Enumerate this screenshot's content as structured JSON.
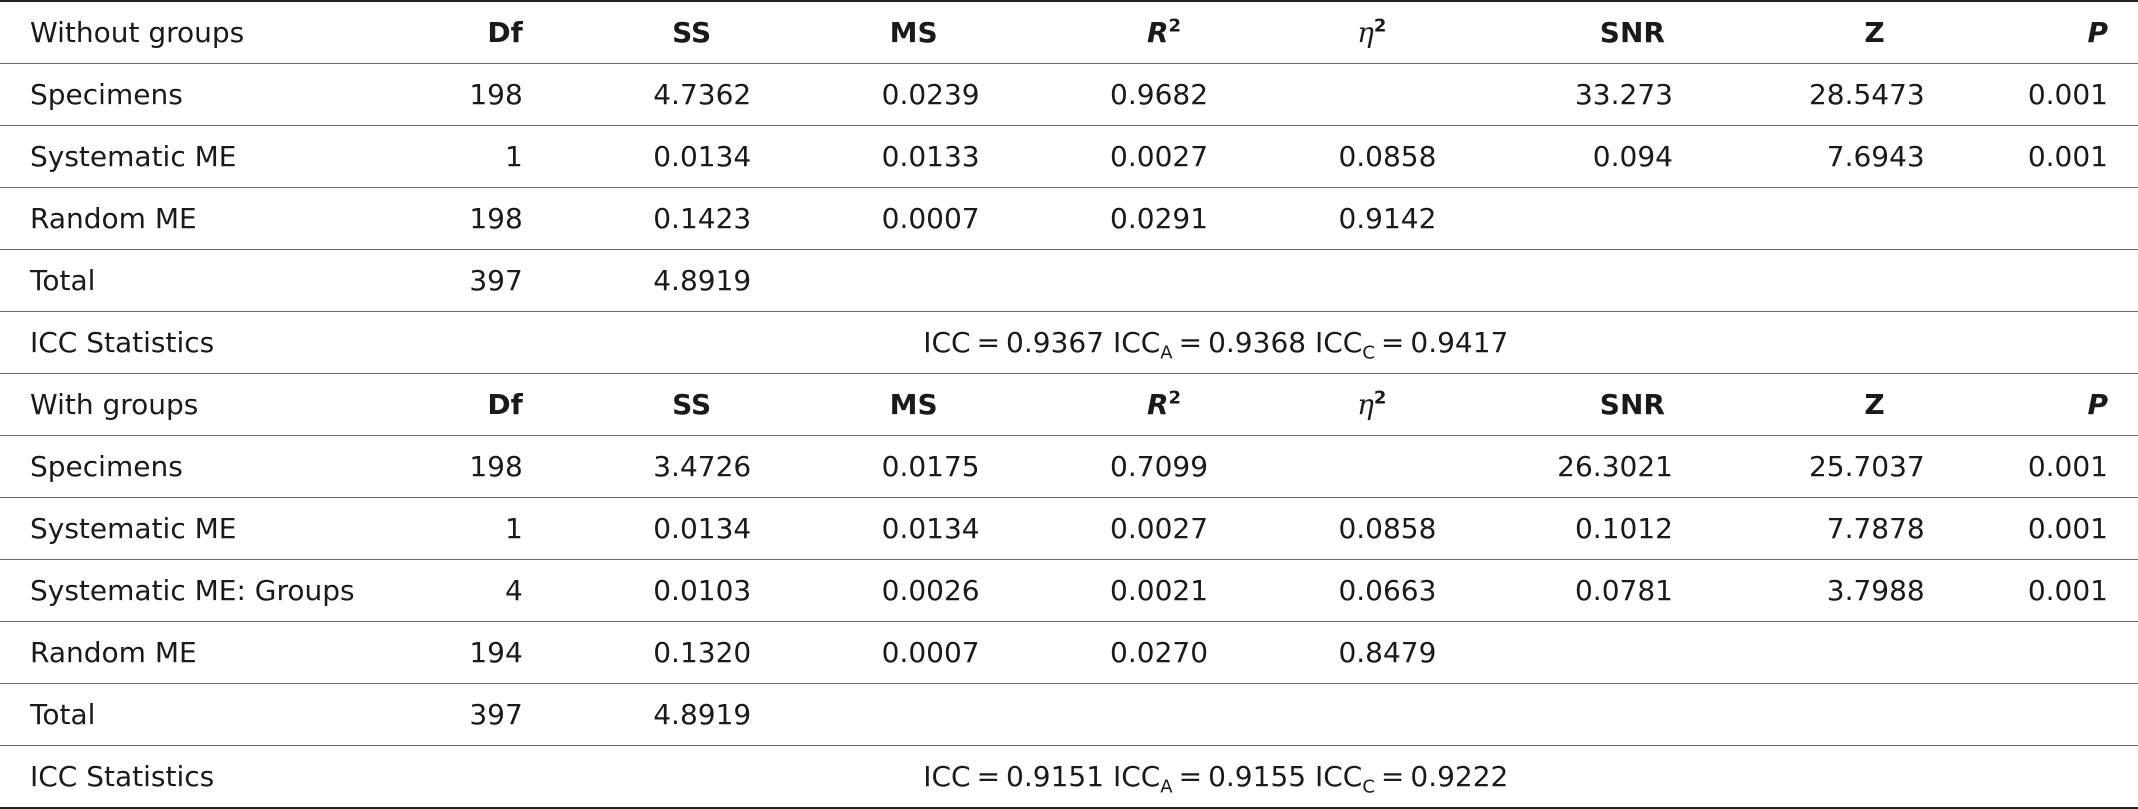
{
  "sections": [
    {
      "label": "Without groups",
      "headers": {
        "df": "Df",
        "ss": "SS",
        "ms": "MS",
        "r_base": "R",
        "r_exp": "2",
        "eta_base": "η",
        "eta_exp": "2",
        "snr": "SNR",
        "z": "Z",
        "p": "P"
      },
      "rows": [
        {
          "name": "Specimens",
          "df": "198",
          "ss": "4.7362",
          "ms": "0.0239",
          "r2": "0.9682",
          "eta2": "",
          "snr": "33.273",
          "z": "28.5473",
          "p": "0.001"
        },
        {
          "name": "Systematic ME",
          "df": "1",
          "ss": "0.0134",
          "ms": "0.0133",
          "r2": "0.0027",
          "eta2": "0.0858",
          "snr": "0.094",
          "z": "7.6943",
          "p": "0.001"
        },
        {
          "name": "Random ME",
          "df": "198",
          "ss": "0.1423",
          "ms": "0.0007",
          "r2": "0.0291",
          "eta2": "0.9142",
          "snr": "",
          "z": "",
          "p": ""
        },
        {
          "name": "Total",
          "df": "397",
          "ss": "4.8919",
          "ms": "",
          "r2": "",
          "eta2": "",
          "snr": "",
          "z": "",
          "p": ""
        }
      ],
      "icc": {
        "label": "ICC Statistics",
        "icc_name": "ICC",
        "eq": "=",
        "icc_value": "0.9367",
        "icca_name": "ICC",
        "icca_sub": "A",
        "icca_value": "0.9368",
        "iccc_name": "ICC",
        "iccc_sub": "C",
        "iccc_value": "0.9417"
      }
    },
    {
      "label": "With groups",
      "headers": {
        "df": "Df",
        "ss": "SS",
        "ms": "MS",
        "r_base": "R",
        "r_exp": "2",
        "eta_base": "η",
        "eta_exp": "2",
        "snr": "SNR",
        "z": "Z",
        "p": "P"
      },
      "rows": [
        {
          "name": "Specimens",
          "df": "198",
          "ss": "3.4726",
          "ms": "0.0175",
          "r2": "0.7099",
          "eta2": "",
          "snr": "26.3021",
          "z": "25.7037",
          "p": "0.001"
        },
        {
          "name": "Systematic ME",
          "df": "1",
          "ss": "0.0134",
          "ms": "0.0134",
          "r2": "0.0027",
          "eta2": "0.0858",
          "snr": "0.1012",
          "z": "7.7878",
          "p": "0.001"
        },
        {
          "name": "Systematic ME: Groups",
          "df": "4",
          "ss": "0.0103",
          "ms": "0.0026",
          "r2": "0.0021",
          "eta2": "0.0663",
          "snr": "0.0781",
          "z": "3.7988",
          "p": "0.001"
        },
        {
          "name": "Random ME",
          "df": "194",
          "ss": "0.1320",
          "ms": "0.0007",
          "r2": "0.0270",
          "eta2": "0.8479",
          "snr": "",
          "z": "",
          "p": ""
        },
        {
          "name": "Total",
          "df": "397",
          "ss": "4.8919",
          "ms": "",
          "r2": "",
          "eta2": "",
          "snr": "",
          "z": "",
          "p": ""
        }
      ],
      "icc": {
        "label": "ICC Statistics",
        "icc_name": "ICC",
        "eq": "=",
        "icc_value": "0.9151",
        "icca_name": "ICC",
        "icca_sub": "A",
        "icca_value": "0.9155",
        "iccc_name": "ICC",
        "iccc_sub": "C",
        "iccc_value": "0.9222"
      }
    }
  ]
}
